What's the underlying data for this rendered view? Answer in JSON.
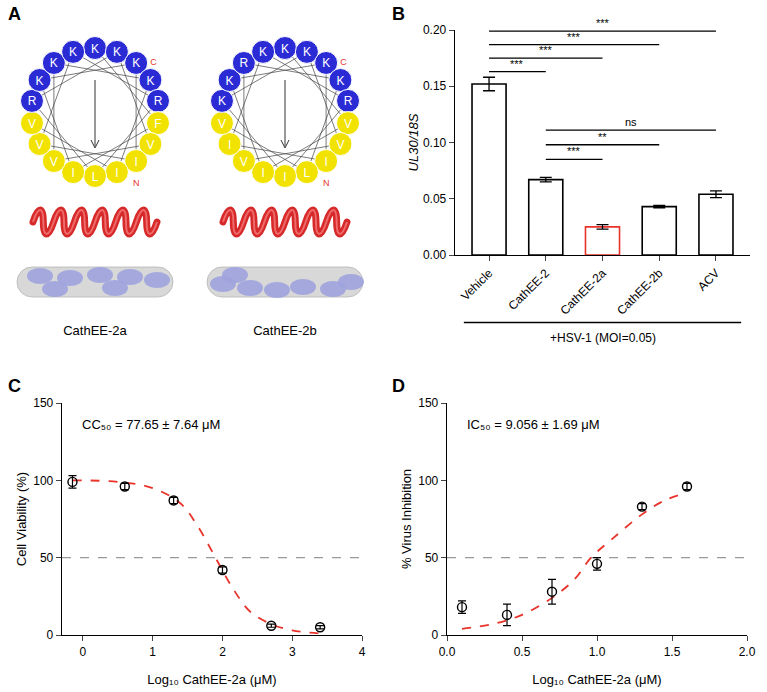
{
  "panel_a": {
    "label": "A",
    "residue_colors": {
      "K": "#2b2bd6",
      "R": "#2b2bd6",
      "V": "#f2e200",
      "I": "#f2e200",
      "L": "#f2e200",
      "F": "#f2e200"
    },
    "terminus_labels": [
      "N",
      "C"
    ],
    "terminus_color": "#e8332a",
    "peptides": [
      {
        "name": "CathEE-2a",
        "residues": "KKKKRFVIILIVVVRKKK"
      },
      {
        "name": "CathEE-2b",
        "residues": "KKKKRVVILIIVIVKKRK"
      }
    ]
  },
  "chart_data": [
    {
      "panel_label": "B",
      "type": "bar",
      "categories": [
        "Vehicle",
        "CathEE-2",
        "CathEE-2a",
        "CathEE-2b",
        "ACV"
      ],
      "values": [
        0.152,
        0.067,
        0.025,
        0.043,
        0.054
      ],
      "errors": [
        0.006,
        0.002,
        0.002,
        0.001,
        0.003
      ],
      "colors": [
        "#000000",
        "#000000",
        "#e8332a",
        "#000000",
        "#000000"
      ],
      "y_label": "UL30/18S",
      "group_label": "+HSV-1 (MOI=0.05)",
      "ylim": [
        0,
        0.2
      ],
      "yticks": [
        {
          "value": 0,
          "label": "0.00"
        },
        {
          "value": 0.05,
          "label": "0.05"
        },
        {
          "value": 0.1,
          "label": "0.10"
        },
        {
          "value": 0.15,
          "label": "0.15"
        },
        {
          "value": 0.2,
          "label": "0.20"
        }
      ],
      "grid": false,
      "comparisons": [
        {
          "from": "Vehicle",
          "to": "CathEE-2",
          "y": 0.163,
          "label": "***"
        },
        {
          "from": "Vehicle",
          "to": "CathEE-2a",
          "y": 0.175,
          "label": "***"
        },
        {
          "from": "Vehicle",
          "to": "CathEE-2b",
          "y": 0.187,
          "label": "***"
        },
        {
          "from": "Vehicle",
          "to": "ACV",
          "y": 0.199,
          "label": "***"
        },
        {
          "from": "CathEE-2",
          "to": "CathEE-2a",
          "y": 0.085,
          "label": "***"
        },
        {
          "from": "CathEE-2",
          "to": "CathEE-2b",
          "y": 0.098,
          "label": "**"
        },
        {
          "from": "CathEE-2",
          "to": "ACV",
          "y": 0.111,
          "label": "ns"
        }
      ]
    },
    {
      "panel_label": "C",
      "type": "scatter",
      "x_label": "Log₁₀ CathEE-2a (μM)",
      "y_label": "Cell Viability (%)",
      "annotation": "CC₅₀ = 77.65 ± 7.64 μM",
      "xlim": [
        -0.3,
        4
      ],
      "xticks": [
        0,
        1,
        2,
        3,
        4
      ],
      "ylim": [
        0,
        150
      ],
      "yticks": [
        0,
        50,
        100,
        150
      ],
      "grid": false,
      "reference_line": {
        "value": 50,
        "color": "#999999",
        "line_style": "dash"
      },
      "series": [
        {
          "type": "scatter",
          "marker": "open-circle",
          "color": "#000000",
          "x": [
            -0.15,
            0.6,
            1.3,
            2.0,
            2.7,
            3.4
          ],
          "values": [
            99,
            96,
            87,
            42,
            6,
            5
          ],
          "errors": [
            4,
            2,
            2,
            2,
            1,
            1
          ]
        },
        {
          "type": "line",
          "line_style": "dash",
          "color": "#e8332a",
          "x": [
            -0.15,
            0.5,
            1.0,
            1.4,
            1.65,
            1.9,
            2.15,
            2.4,
            2.7,
            3.0,
            3.4
          ],
          "values": [
            100,
            99,
            95,
            85,
            70,
            50,
            30,
            15,
            7,
            3,
            1
          ]
        }
      ]
    },
    {
      "panel_label": "D",
      "type": "scatter",
      "x_label": "Log₁₀ CathEE-2a (μM)",
      "y_label": "% Virus Inhibition",
      "annotation": "IC₅₀ = 9.056 ± 1.69 μM",
      "xlim": [
        0,
        2
      ],
      "xticks": [
        {
          "value": 0,
          "label": "0.0"
        },
        {
          "value": 0.5,
          "label": "0.5"
        },
        {
          "value": 1,
          "label": "1.0"
        },
        {
          "value": 1.5,
          "label": "1.5"
        },
        {
          "value": 2,
          "label": "2.0"
        }
      ],
      "ylim": [
        0,
        150
      ],
      "yticks": [
        0,
        50,
        100,
        150
      ],
      "grid": false,
      "reference_line": {
        "value": 50,
        "color": "#999999",
        "line_style": "dash"
      },
      "series": [
        {
          "type": "scatter",
          "marker": "open-circle",
          "color": "#000000",
          "x": [
            0.1,
            0.4,
            0.7,
            1.0,
            1.3,
            1.6
          ],
          "values": [
            18,
            13,
            28,
            46,
            83,
            96
          ],
          "errors": [
            4,
            7,
            8,
            4,
            2,
            2
          ]
        },
        {
          "type": "line",
          "line_style": "dash",
          "color": "#e8332a",
          "x": [
            0.1,
            0.3,
            0.5,
            0.7,
            0.85,
            0.96,
            1.1,
            1.3,
            1.45,
            1.6
          ],
          "values": [
            4,
            7,
            13,
            24,
            36,
            50,
            62,
            78,
            87,
            92
          ]
        }
      ]
    }
  ]
}
